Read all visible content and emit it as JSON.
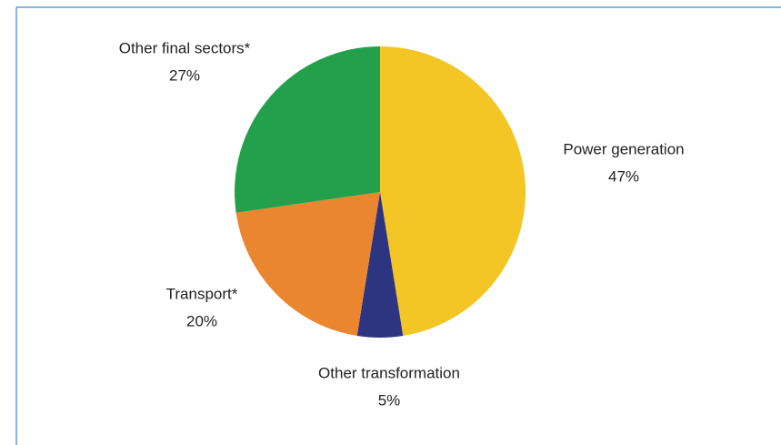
{
  "chart_data": {
    "type": "pie",
    "categories": [
      "Power generation",
      "Other transformation",
      "Transport*",
      "Other final sectors*"
    ],
    "values": [
      47,
      5,
      20,
      27
    ],
    "value_labels": [
      "47%",
      "5%",
      "20%",
      "27%"
    ],
    "colors": [
      "#f3c625",
      "#2d3581",
      "#ea8630",
      "#22a04b"
    ]
  }
}
